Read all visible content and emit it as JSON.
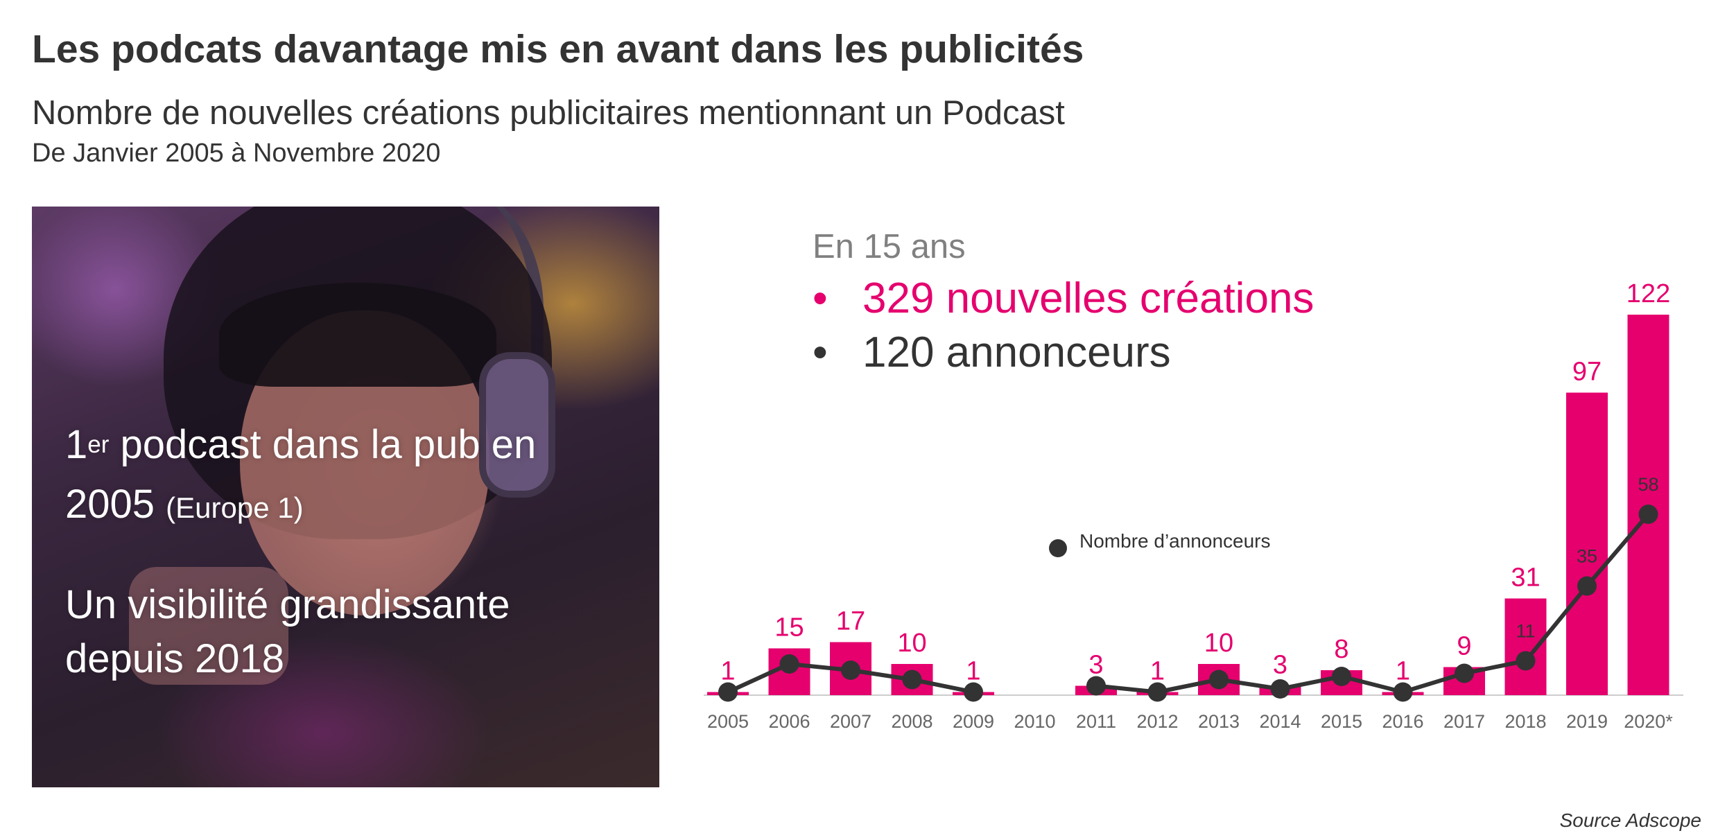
{
  "header": {
    "title": "Les podcats davantage mis en avant dans les publicités",
    "subtitle": "Nombre de nouvelles créations publicitaires mentionnant un Podcast",
    "period": "De Janvier 2005 à Novembre 2020"
  },
  "photo_panel": {
    "line1_number": "1",
    "line1_sup": "er",
    "line1_rest": " podcast dans la pub en",
    "line2_year": "2005 ",
    "line2_note": "(Europe 1)",
    "line3": "Un visibilité grandissante",
    "line4": "depuis 2018"
  },
  "summary": {
    "intro": "En 15 ans",
    "bullet_symbol": "•",
    "creations": "329 nouvelles créations",
    "announcers": "120 annonceurs"
  },
  "legend_label": "Nombre d’annonceurs",
  "source": "Source Adscope",
  "colors": {
    "bar": "#e5006e",
    "bar_label": "#e5006e",
    "line": "#333333",
    "axis": "#cccccc",
    "tick": "#666666"
  },
  "chart_data": {
    "type": "bar",
    "categories": [
      "2005",
      "2006",
      "2007",
      "2008",
      "2009",
      "2010",
      "2011",
      "2012",
      "2013",
      "2014",
      "2015",
      "2016",
      "2017",
      "2018",
      "2019",
      "2020*"
    ],
    "series": [
      {
        "name": "Nouvelles créations",
        "type": "bar",
        "values": [
          1,
          15,
          17,
          10,
          1,
          0,
          3,
          1,
          10,
          3,
          8,
          1,
          9,
          31,
          97,
          122
        ],
        "labels": [
          "1",
          "15",
          "17",
          "10",
          "1",
          "",
          "3",
          "1",
          "10",
          "3",
          "8",
          "1",
          "9",
          "31",
          "97",
          "122"
        ]
      },
      {
        "name": "Nombre d’annonceurs",
        "type": "line",
        "values": [
          1,
          10,
          8,
          5,
          1,
          null,
          3,
          1,
          5,
          2,
          6,
          1,
          7,
          11,
          35,
          58
        ],
        "labels": [
          "",
          "",
          "",
          "",
          "",
          "",
          "",
          "",
          "",
          "",
          "",
          "",
          "",
          "11",
          "35",
          "58"
        ]
      }
    ],
    "ylim": [
      0,
      125
    ]
  }
}
